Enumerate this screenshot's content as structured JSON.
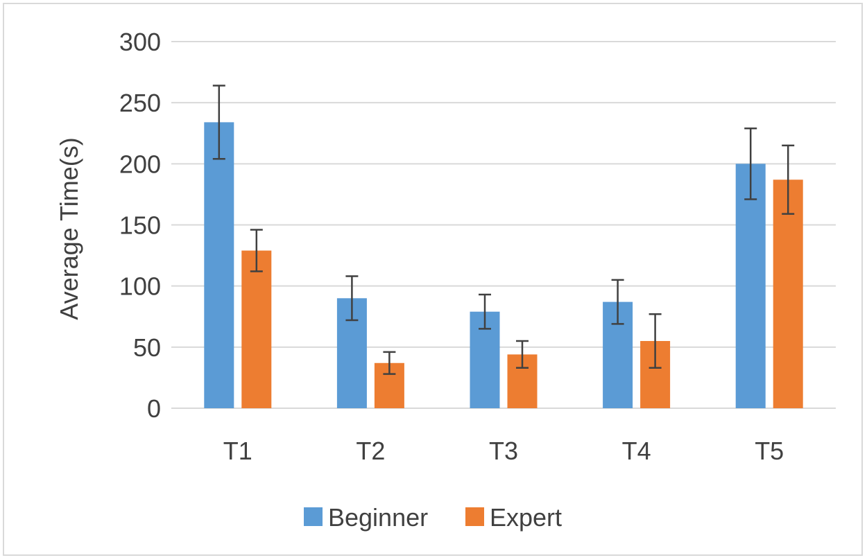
{
  "chart_data": {
    "type": "bar",
    "title": "",
    "xlabel": "",
    "ylabel": "Average Time(s)",
    "ylim": [
      0,
      300
    ],
    "yticks": [
      "0",
      "50",
      "100",
      "150",
      "200",
      "250",
      "300"
    ],
    "grid": true,
    "legend_position": "bottom",
    "categories": [
      "T1",
      "T2",
      "T3",
      "T4",
      "T5"
    ],
    "series": [
      {
        "name": "Beginner",
        "color": "#5b9bd5",
        "values": [
          234,
          90,
          79,
          87,
          200
        ],
        "error": [
          30,
          18,
          14,
          18,
          29
        ]
      },
      {
        "name": "Expert",
        "color": "#ed7d31",
        "values": [
          129,
          37,
          44,
          55,
          187
        ],
        "error": [
          17,
          9,
          11,
          22,
          28
        ]
      }
    ]
  }
}
